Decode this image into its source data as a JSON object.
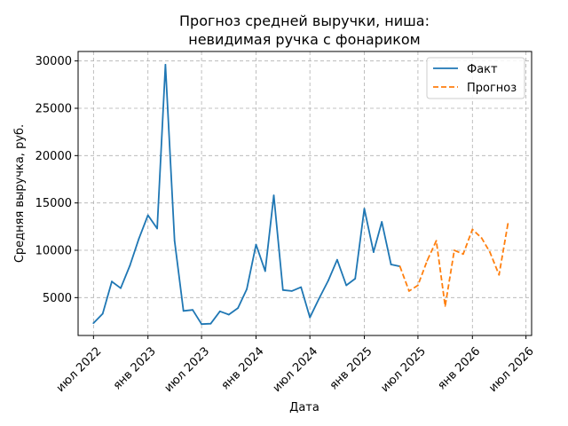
{
  "chart_data": {
    "type": "line",
    "title_line1": "Прогноз средней выручки, ниша:",
    "title_line2": "невидимая ручка с фонариком",
    "xlabel": "Дата",
    "ylabel": "Средняя выручка, руб.",
    "ylim": [
      1000,
      31000
    ],
    "xlim": [
      "2022-05-10",
      "2026-07-20"
    ],
    "y_ticks": [
      5000,
      10000,
      15000,
      20000,
      25000,
      30000
    ],
    "y_tick_labels": [
      "5000",
      "10000",
      "15000",
      "20000",
      "25000",
      "30000"
    ],
    "x_ticks": [
      "2022-07-01",
      "2023-01-01",
      "2023-07-01",
      "2024-01-01",
      "2024-07-01",
      "2025-01-01",
      "2025-07-01",
      "2026-01-01",
      "2026-07-01"
    ],
    "x_tick_labels": [
      "июл 2022",
      "янв 2023",
      "июл 2023",
      "янв 2024",
      "июл 2024",
      "янв 2025",
      "июл 2025",
      "янв 2026",
      "июл 2026"
    ],
    "grid": true,
    "legend_position": "top-right",
    "series": [
      {
        "name": "Факт",
        "color": "#1f77b4",
        "style": "solid",
        "x": [
          "2022-07-01",
          "2022-08-01",
          "2022-09-01",
          "2022-10-01",
          "2022-11-01",
          "2022-12-01",
          "2023-01-01",
          "2023-02-01",
          "2023-03-01",
          "2023-04-01",
          "2023-05-01",
          "2023-06-01",
          "2023-07-01",
          "2023-08-01",
          "2023-09-01",
          "2023-10-01",
          "2023-11-01",
          "2023-12-01",
          "2024-01-01",
          "2024-02-01",
          "2024-03-01",
          "2024-04-01",
          "2024-05-01",
          "2024-06-01",
          "2024-07-01",
          "2024-08-01",
          "2024-09-01",
          "2024-10-01",
          "2024-11-01",
          "2024-12-01",
          "2025-01-01",
          "2025-02-01",
          "2025-03-01",
          "2025-04-01",
          "2025-05-01"
        ],
        "y": [
          2300,
          3300,
          6700,
          6000,
          8400,
          11200,
          13700,
          12300,
          29600,
          11000,
          3600,
          3700,
          2200,
          2250,
          3550,
          3200,
          3900,
          5900,
          10600,
          7800,
          15800,
          5800,
          5700,
          6100,
          2900,
          4900,
          6800,
          9000,
          6300,
          7000,
          14400,
          9800,
          13000,
          8500,
          8300
        ]
      },
      {
        "name": "Прогноз",
        "color": "#ff7f0e",
        "style": "dashed",
        "x": [
          "2025-05-01",
          "2025-06-01",
          "2025-07-01",
          "2025-08-01",
          "2025-09-01",
          "2025-10-01",
          "2025-11-01",
          "2025-12-01",
          "2026-01-01",
          "2026-02-01",
          "2026-03-01",
          "2026-04-01",
          "2026-05-01"
        ],
        "y": [
          8300,
          5700,
          6300,
          8900,
          11000,
          4100,
          10000,
          9600,
          12200,
          11300,
          9800,
          7400,
          12800
        ]
      }
    ]
  }
}
